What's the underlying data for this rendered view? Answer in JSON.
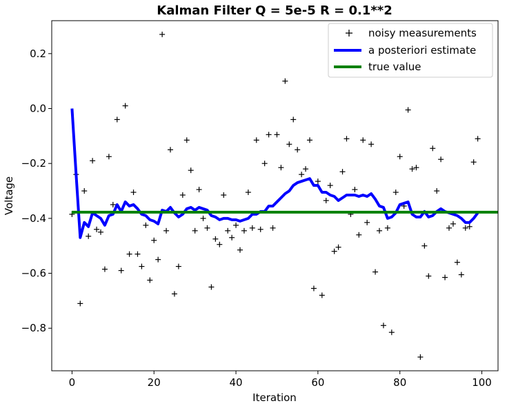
{
  "chart_data": {
    "type": "line",
    "title": "Kalman Filter Q = 5e-5 R = 0.1**2",
    "xlabel": "Iteration",
    "ylabel": "Voltage",
    "xlim": [
      -4.95,
      103.95
    ],
    "ylim": [
      -0.955,
      0.32
    ],
    "xticks": [
      0,
      20,
      40,
      60,
      80,
      100
    ],
    "xtick_labels": [
      "0",
      "20",
      "40",
      "60",
      "80",
      "100"
    ],
    "yticks": [
      0.2,
      0.0,
      -0.2,
      -0.4,
      -0.6,
      -0.8
    ],
    "ytick_labels": [
      "0.2",
      "0.0",
      "−0.2",
      "−0.4",
      "−0.6",
      "−0.8"
    ],
    "grid": false,
    "legend_position": "top-right",
    "series": [
      {
        "name": "noisy measurements",
        "style": "marker-plus",
        "color": "#000000",
        "values": [
          -0.385,
          -0.24,
          -0.71,
          -0.3,
          -0.465,
          -0.19,
          -0.44,
          -0.45,
          -0.585,
          -0.175,
          -0.35,
          -0.04,
          -0.59,
          0.01,
          -0.53,
          -0.305,
          -0.53,
          -0.575,
          -0.425,
          -0.625,
          -0.48,
          -0.55,
          0.27,
          -0.445,
          -0.15,
          -0.675,
          -0.575,
          -0.315,
          -0.115,
          -0.225,
          -0.445,
          -0.295,
          -0.4,
          -0.435,
          -0.65,
          -0.475,
          -0.495,
          -0.315,
          -0.445,
          -0.47,
          -0.425,
          -0.515,
          -0.445,
          -0.305,
          -0.435,
          -0.115,
          -0.44,
          -0.2,
          -0.095,
          -0.435,
          -0.095,
          -0.215,
          0.1,
          -0.13,
          -0.04,
          -0.15,
          -0.24,
          -0.22,
          -0.115,
          -0.655,
          -0.265,
          -0.68,
          -0.335,
          -0.28,
          -0.52,
          -0.505,
          -0.23,
          -0.11,
          -0.385,
          -0.295,
          -0.46,
          -0.115,
          -0.415,
          -0.13,
          -0.595,
          -0.445,
          -0.79,
          -0.435,
          -0.815,
          -0.305,
          -0.175,
          -0.355,
          -0.005,
          -0.22,
          -0.215,
          -0.905,
          -0.5,
          -0.61,
          -0.145,
          -0.3,
          -0.185,
          -0.615,
          -0.435,
          -0.42,
          -0.56,
          -0.605,
          -0.435,
          -0.43,
          -0.195,
          -0.11
        ]
      },
      {
        "name": "a posteriori estimate",
        "style": "line",
        "color": "#0000ff",
        "values": [
          0,
          -0.24,
          -0.47,
          -0.415,
          -0.43,
          -0.38,
          -0.39,
          -0.4,
          -0.425,
          -0.39,
          -0.385,
          -0.35,
          -0.375,
          -0.34,
          -0.355,
          -0.35,
          -0.365,
          -0.385,
          -0.39,
          -0.405,
          -0.41,
          -0.42,
          -0.37,
          -0.375,
          -0.36,
          -0.38,
          -0.395,
          -0.385,
          -0.365,
          -0.36,
          -0.37,
          -0.36,
          -0.365,
          -0.37,
          -0.39,
          -0.395,
          -0.405,
          -0.4,
          -0.4,
          -0.405,
          -0.405,
          -0.41,
          -0.405,
          -0.4,
          -0.385,
          -0.385,
          -0.375,
          -0.375,
          -0.355,
          -0.355,
          -0.34,
          -0.325,
          -0.31,
          -0.3,
          -0.28,
          -0.27,
          -0.265,
          -0.26,
          -0.255,
          -0.28,
          -0.28,
          -0.305,
          -0.305,
          -0.315,
          -0.32,
          -0.335,
          -0.325,
          -0.315,
          -0.315,
          -0.315,
          -0.32,
          -0.315,
          -0.32,
          -0.31,
          -0.33,
          -0.355,
          -0.36,
          -0.4,
          -0.395,
          -0.38,
          -0.35,
          -0.345,
          -0.34,
          -0.385,
          -0.395,
          -0.395,
          -0.375,
          -0.395,
          -0.39,
          -0.375,
          -0.365,
          -0.375,
          -0.38,
          -0.385,
          -0.39,
          -0.4,
          -0.415,
          -0.415,
          -0.4,
          -0.38
        ]
      },
      {
        "name": "true value",
        "style": "hline",
        "color": "#008000",
        "value": -0.3775
      }
    ]
  }
}
